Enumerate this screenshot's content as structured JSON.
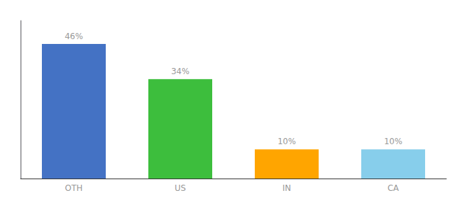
{
  "chart_data": {
    "type": "bar",
    "categories": [
      "OTH",
      "US",
      "IN",
      "CA"
    ],
    "values": [
      46,
      34,
      10,
      10
    ],
    "value_labels": [
      "46%",
      "34%",
      "10%",
      "10%"
    ],
    "colors": [
      "#4472C4",
      "#3DBE3D",
      "#FFA500",
      "#87CEEB"
    ],
    "ylim": [
      0,
      54
    ],
    "data_labels": true,
    "tick_labels": "x",
    "grid": false
  }
}
